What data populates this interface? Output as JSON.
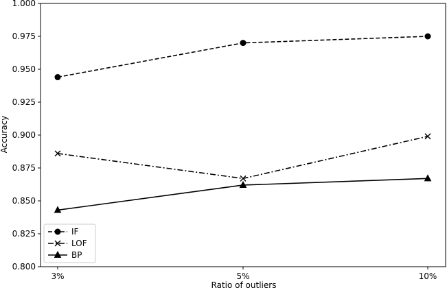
{
  "chart_data": {
    "type": "line",
    "title": "",
    "xlabel": "Ratio of outliers",
    "ylabel": "Accuracy",
    "categories": [
      "3%",
      "5%",
      "10%"
    ],
    "ylim": [
      0.8,
      1.0
    ],
    "yticks": [
      "0.800",
      "0.825",
      "0.850",
      "0.875",
      "0.900",
      "0.925",
      "0.950",
      "0.975",
      "1.000"
    ],
    "grid": false,
    "legend_position": "lower-left",
    "series": [
      {
        "name": "IF",
        "values": [
          0.944,
          0.97,
          0.975
        ],
        "marker": "circle",
        "linestyle": "dashed"
      },
      {
        "name": "LOF",
        "values": [
          0.886,
          0.867,
          0.899
        ],
        "marker": "x",
        "linestyle": "dashdot"
      },
      {
        "name": "BP",
        "values": [
          0.843,
          0.862,
          0.867
        ],
        "marker": "triangle",
        "linestyle": "solid"
      }
    ],
    "colors": {
      "line": "#000000",
      "background": "#ffffff"
    }
  }
}
